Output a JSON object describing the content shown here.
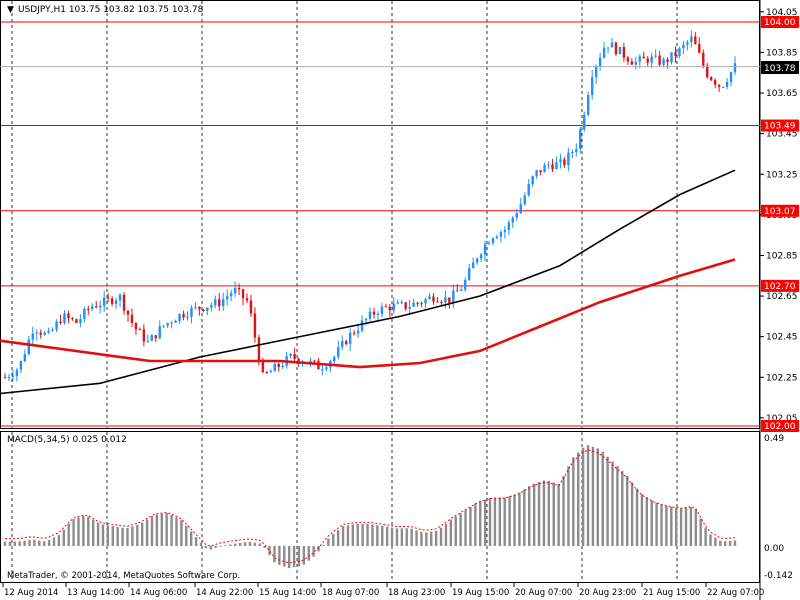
{
  "header": {
    "symbol_info": "USDJPY,H1  103.75 103.82 103.75 103.78"
  },
  "main_pane": {
    "price_levels": [
      "104.05",
      "103.85",
      "103.65",
      "103.45",
      "103.25",
      "103.05",
      "102.85",
      "102.65",
      "102.45",
      "102.25",
      "102.05"
    ],
    "current_price": "103.78",
    "horizontal_lines": [
      {
        "value": 104.0,
        "label": "104.00"
      },
      {
        "value": 103.49,
        "label": "103.49"
      },
      {
        "value": 103.07,
        "label": "103.07"
      },
      {
        "value": 102.7,
        "label": "102.70"
      },
      {
        "value": 102.0,
        "label": "102.00"
      }
    ]
  },
  "macd_pane": {
    "title": "MACD(5,34,5) 0.025 0.012",
    "levels": [
      "0.49",
      "0.00",
      "-0.142"
    ],
    "copyright": "MetaTrader, © 2001-2014, MetaQuotes Software Corp."
  },
  "time_axis": {
    "labels": [
      "12 Aug 2014",
      "13 Aug 14:00",
      "14 Aug 06:00",
      "14 Aug 22:00",
      "15 Aug 14:00",
      "18 Aug 07:00",
      "18 Aug 23:00",
      "19 Aug 15:00",
      "20 Aug 07:00",
      "20 Aug 23:00",
      "21 Aug 15:00",
      "22 Aug 07:00"
    ]
  },
  "colors": {
    "bull": "#1e90ff",
    "bear": "#dc1414",
    "line_red": "#ff0000",
    "ma_black": "#000000",
    "ma_red": "#e01010",
    "macd_hist": "#8c8c8c",
    "macd_signal": "#ff0000"
  },
  "chart_data": {
    "type": "candlestick",
    "symbol": "USDJPY",
    "timeframe": "H1",
    "ylim": [
      102.0,
      104.07
    ],
    "x": [
      "12 Aug 2014",
      "13 Aug 14:00",
      "14 Aug 06:00",
      "14 Aug 22:00",
      "15 Aug 14:00",
      "18 Aug 07:00",
      "18 Aug 23:00",
      "19 Aug 15:00",
      "20 Aug 07:00",
      "20 Aug 23:00",
      "21 Aug 15:00",
      "22 Aug 07:00"
    ],
    "close_path": [
      102.25,
      102.3,
      102.5,
      102.45,
      102.55,
      102.52,
      102.6,
      102.62,
      102.65,
      102.5,
      102.42,
      102.5,
      102.55,
      102.58,
      102.6,
      102.62,
      102.68,
      102.62,
      102.25,
      102.3,
      102.35,
      102.33,
      102.3,
      102.35,
      102.45,
      102.52,
      102.58,
      102.6,
      102.6,
      102.62,
      102.65,
      102.63,
      102.7,
      102.85,
      102.95,
      102.98,
      103.1,
      103.25,
      103.3,
      103.3,
      103.4,
      103.75,
      103.9,
      103.85,
      103.8,
      103.82,
      103.8,
      103.85,
      103.92,
      103.75,
      103.68,
      103.78
    ],
    "moving_average_black": [
      [
        0,
        102.17
      ],
      [
        100,
        102.22
      ],
      [
        200,
        102.35
      ],
      [
        300,
        102.45
      ],
      [
        400,
        102.55
      ],
      [
        480,
        102.65
      ],
      [
        560,
        102.8
      ],
      [
        620,
        102.98
      ],
      [
        680,
        103.15
      ],
      [
        735,
        103.27
      ]
    ],
    "moving_average_red": [
      [
        0,
        102.43
      ],
      [
        150,
        102.33
      ],
      [
        280,
        102.33
      ],
      [
        360,
        102.3
      ],
      [
        420,
        102.32
      ],
      [
        480,
        102.38
      ],
      [
        540,
        102.5
      ],
      [
        600,
        102.62
      ],
      [
        680,
        102.75
      ],
      [
        735,
        102.83
      ]
    ],
    "macd": {
      "min": -0.142,
      "max": 0.49,
      "values": [
        0.02,
        0.02,
        0.03,
        0.02,
        0.05,
        0.12,
        0.14,
        0.1,
        0.09,
        0.08,
        0.1,
        0.14,
        0.15,
        0.12,
        0.05,
        -0.02,
        0.0,
        0.01,
        0.02,
        0.01,
        -0.08,
        -0.1,
        -0.09,
        -0.04,
        0.04,
        0.09,
        0.1,
        0.1,
        0.09,
        0.08,
        0.08,
        0.06,
        0.07,
        0.12,
        0.16,
        0.2,
        0.22,
        0.22,
        0.24,
        0.28,
        0.3,
        0.28,
        0.4,
        0.46,
        0.44,
        0.38,
        0.32,
        0.24,
        0.2,
        0.18,
        0.17,
        0.18,
        0.06,
        0.02,
        0.025
      ]
    }
  }
}
